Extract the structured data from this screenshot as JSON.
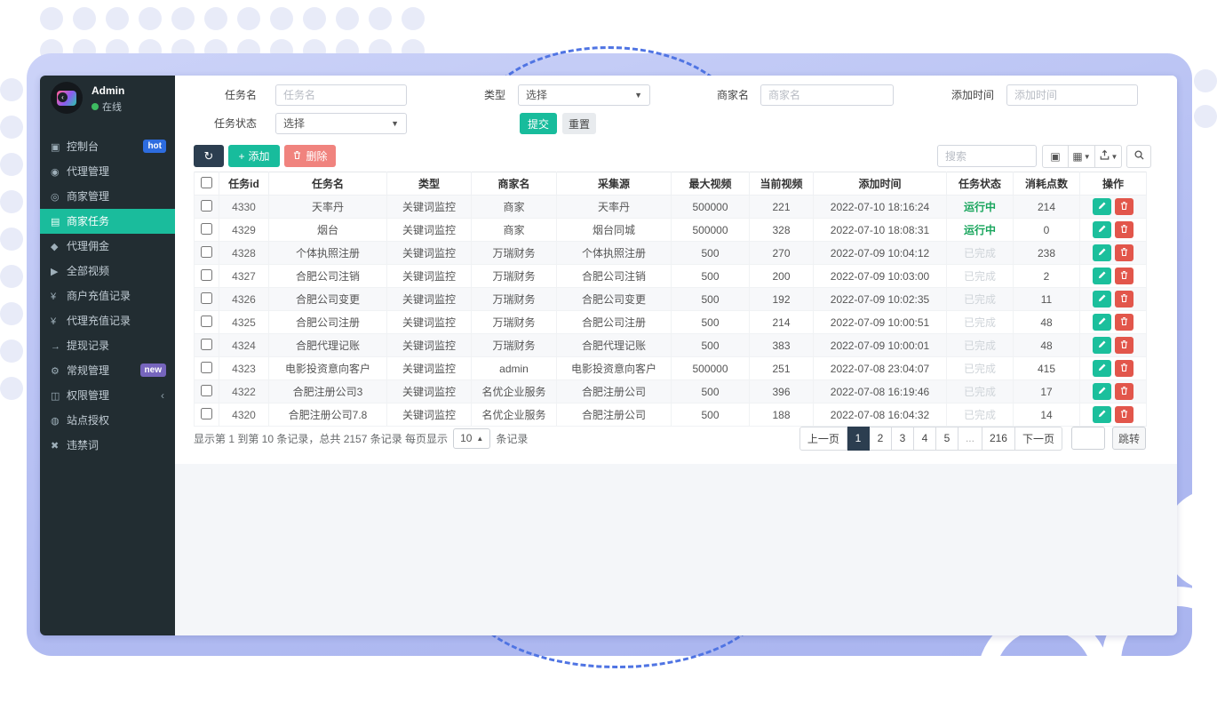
{
  "user": {
    "name": "Admin",
    "status": "在线"
  },
  "sidebar": {
    "items": [
      {
        "label": "控制台",
        "icon": "dashboard-icon",
        "glyph": "▣",
        "badge": "hot",
        "badge_color": "#2d6cdf"
      },
      {
        "label": "代理管理",
        "icon": "agent-manage-icon",
        "glyph": "◉"
      },
      {
        "label": "商家管理",
        "icon": "merchant-manage-icon",
        "glyph": "◎"
      },
      {
        "label": "商家任务",
        "icon": "merchant-tasks-icon",
        "glyph": "▤",
        "active": true
      },
      {
        "label": "代理佣金",
        "icon": "commission-icon",
        "glyph": "◆"
      },
      {
        "label": "全部视频",
        "icon": "videos-icon",
        "glyph": "▶"
      },
      {
        "label": "商户充值记录",
        "icon": "merchant-recharge-icon",
        "glyph": "¥"
      },
      {
        "label": "代理充值记录",
        "icon": "agent-recharge-icon",
        "glyph": "¥"
      },
      {
        "label": "提现记录",
        "icon": "withdraw-icon",
        "glyph": "→"
      },
      {
        "label": "常规管理",
        "icon": "settings-icon",
        "glyph": "⚙",
        "badge": "new",
        "badge_color": "#7665bd"
      },
      {
        "label": "权限管理",
        "icon": "permissions-icon",
        "glyph": "◫",
        "chevron": "‹"
      },
      {
        "label": "站点授权",
        "icon": "site-auth-icon",
        "glyph": "◍"
      },
      {
        "label": "违禁词",
        "icon": "banned-words-icon",
        "glyph": "✖"
      }
    ]
  },
  "filters": {
    "fields": [
      {
        "label": "任务名",
        "placeholder": "任务名"
      },
      {
        "label": "类型",
        "value": "选择"
      },
      {
        "label": "商家名",
        "placeholder": "商家名"
      },
      {
        "label": "添加时间",
        "placeholder": "添加时间"
      },
      {
        "label": "任务状态",
        "value": "选择"
      }
    ],
    "submit": "提交",
    "reset": "重置"
  },
  "toolbar": {
    "add": "添加",
    "delete": "删除",
    "search_placeholder": "搜索"
  },
  "table": {
    "columns": [
      "任务id",
      "任务名",
      "类型",
      "商家名",
      "采集源",
      "最大视频",
      "当前视频",
      "添加时间",
      "任务状态",
      "消耗点数",
      "操作"
    ],
    "rows": [
      {
        "id": "4330",
        "name": "天率丹",
        "type": "关键词监控",
        "merchant": "商家",
        "source": "天率丹",
        "max": "500000",
        "current": "221",
        "added": "2022-07-10 18:16:24",
        "status": "运行中",
        "status_type": "running",
        "points": "214"
      },
      {
        "id": "4329",
        "name": "烟台",
        "type": "关键词监控",
        "merchant": "商家",
        "source": "烟台同城",
        "max": "500000",
        "current": "328",
        "added": "2022-07-10 18:08:31",
        "status": "运行中",
        "status_type": "running",
        "points": "0"
      },
      {
        "id": "4328",
        "name": "个体执照注册",
        "type": "关键词监控",
        "merchant": "万瑞财务",
        "source": "个体执照注册",
        "max": "500",
        "current": "270",
        "added": "2022-07-09 10:04:12",
        "status": "已完成",
        "status_type": "done",
        "points": "238"
      },
      {
        "id": "4327",
        "name": "合肥公司注销",
        "type": "关键词监控",
        "merchant": "万瑞财务",
        "source": "合肥公司注销",
        "max": "500",
        "current": "200",
        "added": "2022-07-09 10:03:00",
        "status": "已完成",
        "status_type": "done",
        "points": "2"
      },
      {
        "id": "4326",
        "name": "合肥公司变更",
        "type": "关键词监控",
        "merchant": "万瑞财务",
        "source": "合肥公司变更",
        "max": "500",
        "current": "192",
        "added": "2022-07-09 10:02:35",
        "status": "已完成",
        "status_type": "done",
        "points": "11"
      },
      {
        "id": "4325",
        "name": "合肥公司注册",
        "type": "关键词监控",
        "merchant": "万瑞财务",
        "source": "合肥公司注册",
        "max": "500",
        "current": "214",
        "added": "2022-07-09 10:00:51",
        "status": "已完成",
        "status_type": "done",
        "points": "48"
      },
      {
        "id": "4324",
        "name": "合肥代理记账",
        "type": "关键词监控",
        "merchant": "万瑞财务",
        "source": "合肥代理记账",
        "max": "500",
        "current": "383",
        "added": "2022-07-09 10:00:01",
        "status": "已完成",
        "status_type": "done",
        "points": "48"
      },
      {
        "id": "4323",
        "name": "电影投资意向客户",
        "type": "关键词监控",
        "merchant": "admin",
        "source": "电影投资意向客户",
        "max": "500000",
        "current": "251",
        "added": "2022-07-08 23:04:07",
        "status": "已完成",
        "status_type": "done",
        "points": "415"
      },
      {
        "id": "4322",
        "name": "合肥注册公司3",
        "type": "关键词监控",
        "merchant": "名优企业服务",
        "source": "合肥注册公司",
        "max": "500",
        "current": "396",
        "added": "2022-07-08 16:19:46",
        "status": "已完成",
        "status_type": "done",
        "points": "17"
      },
      {
        "id": "4320",
        "name": "合肥注册公司7.8",
        "type": "关键词监控",
        "merchant": "名优企业服务",
        "source": "合肥注册公司",
        "max": "500",
        "current": "188",
        "added": "2022-07-08 16:04:32",
        "status": "已完成",
        "status_type": "done",
        "points": "14"
      }
    ]
  },
  "footer": {
    "summary_prefix": "显示第 1 到第 10 条记录，总共 2157 条记录 每页显示",
    "page_size": "10",
    "summary_suffix": "条记录",
    "pagination": {
      "prev": "上一页",
      "pages": [
        "1",
        "2",
        "3",
        "4",
        "5",
        "...",
        "216"
      ],
      "active": "1",
      "next": "下一页",
      "jump": "跳转"
    }
  },
  "colors": {
    "accent_teal": "#1abc9c",
    "dark_navy": "#2c3e50",
    "danger_red": "#e2564b",
    "muted_delete": "#f0837e",
    "status_running": "#18a55c",
    "status_done": "#cfd4d9",
    "hot_badge": "#2d6cdf",
    "new_badge": "#7665bd",
    "sidebar_bg": "#222d32",
    "frame_purple": "#b3bdf2"
  }
}
